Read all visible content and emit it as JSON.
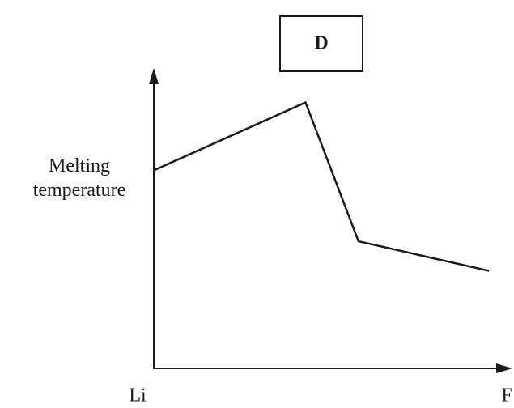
{
  "chart_data": {
    "type": "line",
    "title": "D",
    "ylabel": "Melting temperature",
    "x": [
      0,
      43,
      58,
      95
    ],
    "values": [
      67,
      90,
      43,
      33
    ],
    "color": "#1a1a1a",
    "xlim": [
      0,
      100
    ],
    "ylim": [
      0,
      100
    ],
    "xticks": [
      {
        "value": 0,
        "label": "Li"
      },
      {
        "value": 100,
        "label": "F"
      }
    ]
  }
}
